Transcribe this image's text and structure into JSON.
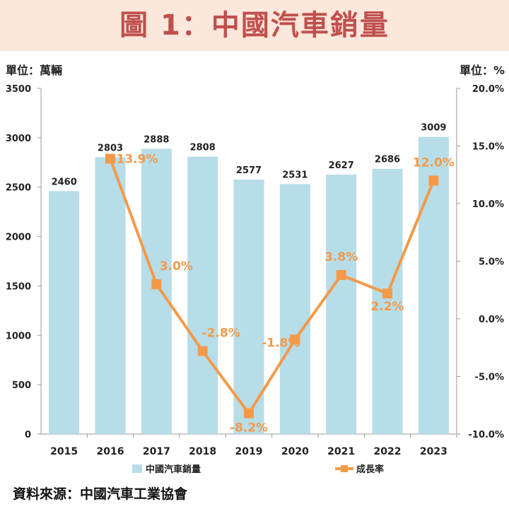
{
  "title": "圖 1：中國汽車銷量",
  "units": {
    "left": "單位：萬輛",
    "right": "單位：%"
  },
  "source": "資料來源：中國汽車工業協會",
  "colors": {
    "bar": "#b7dde8",
    "line": "#f39a4a",
    "title": "#c0504d",
    "title_bg": "#fbe7dc"
  },
  "chart_data": {
    "type": "bar+line",
    "categories": [
      "2015",
      "2016",
      "2017",
      "2018",
      "2019",
      "2020",
      "2021",
      "2022",
      "2023"
    ],
    "series": [
      {
        "name": "中國汽車銷量",
        "type": "bar",
        "axis": "left",
        "values": [
          2460,
          2803,
          2888,
          2808,
          2577,
          2531,
          2627,
          2686,
          3009
        ],
        "labels": [
          "2460",
          "2803",
          "2888",
          "2808",
          "2577",
          "2531",
          "2627",
          "2686",
          "3009"
        ]
      },
      {
        "name": "成長率",
        "type": "line",
        "axis": "right",
        "values": [
          null,
          13.9,
          3.0,
          -2.8,
          -8.2,
          -1.8,
          3.8,
          2.2,
          12.0
        ],
        "labels": [
          null,
          "13.9%",
          "3.0%",
          "-2.8%",
          "-8.2%",
          "-1.8%",
          "3.8%",
          "2.2%",
          "12.0%"
        ]
      }
    ],
    "y_left": {
      "min": 0,
      "max": 3500,
      "ticks": [
        "0",
        "500",
        "1000",
        "1500",
        "2000",
        "2500",
        "3000",
        "3500"
      ]
    },
    "y_right": {
      "min": -10,
      "max": 20,
      "ticks": [
        "-10.0%",
        "-5.0%",
        "0.0%",
        "5.0%",
        "10.0%",
        "15.0%",
        "20.0%"
      ]
    },
    "legend": [
      "中國汽車銷量",
      "成長率"
    ],
    "legend_position": "bottom"
  }
}
